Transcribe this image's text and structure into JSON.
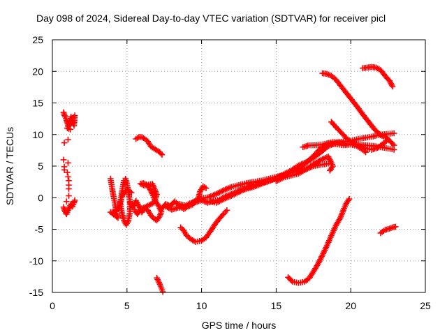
{
  "chart_data": {
    "type": "scatter",
    "title": "Day 098 of 2024, Sidereal Day-to-day VTEC variation (SDTVAR) for receiver picl",
    "xlabel": "GPS time / hours",
    "ylabel": "SDTVAR / TECUs",
    "xlim": [
      0,
      25
    ],
    "ylim": [
      -15,
      25
    ],
    "xticks": [
      "0",
      "5",
      "10",
      "15",
      "20",
      "25"
    ],
    "yticks": [
      "-15",
      "-10",
      "-5",
      "0",
      "5",
      "10",
      "15",
      "20",
      "25"
    ],
    "grid": true,
    "marker": "+",
    "color": "#ff0000",
    "series": [
      {
        "points": [
          [
            0.75,
            13.5
          ],
          [
            0.85,
            12.8
          ],
          [
            0.95,
            12.2
          ],
          [
            1.05,
            11.5
          ],
          [
            1.15,
            12.0
          ],
          [
            1.25,
            12.8
          ],
          [
            1.35,
            12.0
          ],
          [
            1.45,
            11.4
          ],
          [
            1.5,
            13.0
          ],
          [
            1.0,
            11.0
          ],
          [
            1.2,
            10.8
          ]
        ]
      },
      {
        "points": [
          [
            0.75,
            -1.5
          ],
          [
            0.85,
            -2.2
          ],
          [
            0.95,
            -2.6
          ],
          [
            1.05,
            -2.0
          ],
          [
            1.15,
            -1.5
          ],
          [
            1.25,
            -1.0
          ],
          [
            1.35,
            -1.4
          ],
          [
            1.45,
            -0.8
          ],
          [
            1.5,
            -0.4
          ]
        ]
      },
      {
        "points": [
          [
            0.8,
            8.7
          ],
          [
            1.05,
            9.2
          ],
          [
            0.75,
            6.0
          ],
          [
            1.05,
            5.5
          ],
          [
            0.8,
            4.4
          ],
          [
            1.0,
            4.0
          ],
          [
            1.1,
            2.7
          ],
          [
            1.1,
            1.4
          ],
          [
            1.1,
            0.3
          ],
          [
            0.95,
            -0.6
          ],
          [
            0.8,
            4.9
          ],
          [
            1.05,
            3.3
          ],
          [
            1.1,
            2.0
          ]
        ]
      },
      {
        "points": [
          [
            3.9,
            3.0
          ],
          [
            4.0,
            1.5
          ],
          [
            4.1,
            0.2
          ],
          [
            4.2,
            -1.0
          ],
          [
            4.3,
            -2.5
          ],
          [
            4.4,
            -3.2
          ],
          [
            3.9,
            -2.3
          ],
          [
            4.2,
            -2.2
          ],
          [
            4.5,
            -1.5
          ],
          [
            4.6,
            0.0
          ],
          [
            4.7,
            1.5
          ],
          [
            4.8,
            2.7
          ],
          [
            4.9,
            3.0
          ],
          [
            5.0,
            2.2
          ],
          [
            5.1,
            0.8
          ],
          [
            5.2,
            -0.6
          ],
          [
            5.2,
            -2.2
          ],
          [
            5.1,
            -3.6
          ],
          [
            4.95,
            -4.3
          ],
          [
            4.8,
            -3.6
          ],
          [
            4.65,
            -2.3
          ],
          [
            4.55,
            -0.8
          ],
          [
            4.7,
            0.5
          ],
          [
            5.0,
            1.2
          ],
          [
            5.3,
            0.8
          ]
        ]
      },
      {
        "points": [
          [
            5.2,
            -0.8
          ],
          [
            5.4,
            -1.5
          ],
          [
            5.6,
            -0.5
          ],
          [
            5.8,
            -1.3
          ],
          [
            6.0,
            -2.3
          ],
          [
            6.2,
            -1.6
          ],
          [
            6.4,
            -2.0
          ],
          [
            6.6,
            -2.8
          ],
          [
            6.8,
            -3.3
          ],
          [
            7.0,
            -3.6
          ],
          [
            7.2,
            -2.9
          ],
          [
            7.3,
            -2.2
          ],
          [
            7.1,
            -1.2
          ],
          [
            6.9,
            -0.5
          ],
          [
            6.7,
            0.6
          ],
          [
            6.5,
            1.5
          ],
          [
            6.3,
            2.1
          ],
          [
            6.1,
            2.3
          ],
          [
            5.9,
            2.2
          ],
          [
            6.2,
            1.9
          ],
          [
            6.7,
            2.2
          ],
          [
            7.0,
            0.5
          ],
          [
            6.8,
            -0.8
          ],
          [
            6.3,
            -1.4
          ],
          [
            5.9,
            -1.8
          ],
          [
            5.7,
            -2.6
          ],
          [
            5.5,
            -1.9
          ]
        ]
      },
      {
        "points": [
          [
            5.6,
            9.3
          ],
          [
            5.8,
            9.6
          ],
          [
            6.0,
            9.6
          ],
          [
            6.2,
            9.3
          ],
          [
            6.4,
            8.9
          ],
          [
            6.6,
            8.1
          ],
          [
            7.2,
            7.2
          ],
          [
            7.35,
            6.8
          ]
        ]
      },
      {
        "points": [
          [
            7.0,
            -12.7
          ],
          [
            7.1,
            -13.2
          ],
          [
            7.2,
            -13.7
          ],
          [
            7.3,
            -14.3
          ],
          [
            7.4,
            -14.9
          ]
        ]
      },
      {
        "points": [
          [
            7.3,
            -1.8
          ],
          [
            7.6,
            -1.0
          ],
          [
            7.9,
            -1.3
          ],
          [
            8.2,
            -0.6
          ],
          [
            8.5,
            -1.2
          ],
          [
            8.8,
            -1.8
          ],
          [
            9.1,
            -1.4
          ],
          [
            9.4,
            -1.1
          ],
          [
            9.6,
            -0.6
          ],
          [
            9.8,
            0.0
          ],
          [
            9.9,
            1.0
          ],
          [
            10.1,
            1.8
          ],
          [
            10.3,
            1.5
          ]
        ]
      },
      {
        "points": [
          [
            7.6,
            -1.4
          ],
          [
            8.0,
            -1.9
          ],
          [
            8.4,
            -1.6
          ],
          [
            8.8,
            -1.5
          ],
          [
            9.2,
            -0.9
          ],
          [
            9.6,
            -0.7
          ],
          [
            10.0,
            -0.4
          ],
          [
            10.4,
            -0.8
          ],
          [
            10.8,
            -0.5
          ],
          [
            11.2,
            -0.3
          ],
          [
            11.6,
            0.2
          ],
          [
            12.0,
            0.6
          ],
          [
            12.4,
            1.0
          ],
          [
            12.8,
            1.4
          ],
          [
            13.2,
            1.8
          ],
          [
            13.6,
            2.0
          ],
          [
            14.0,
            2.3
          ],
          [
            14.4,
            2.5
          ]
        ]
      },
      {
        "points": [
          [
            8.5,
            -1.0
          ],
          [
            9.0,
            -1.3
          ],
          [
            9.5,
            -0.6
          ],
          [
            10.0,
            -0.1
          ],
          [
            10.5,
            0.1
          ],
          [
            11.0,
            0.6
          ],
          [
            11.5,
            1.2
          ],
          [
            12.0,
            1.7
          ],
          [
            12.5,
            2.0
          ],
          [
            13.0,
            2.3
          ],
          [
            13.5,
            2.5
          ],
          [
            14.0,
            2.7
          ],
          [
            14.5,
            3.0
          ],
          [
            15.0,
            3.3
          ],
          [
            15.5,
            3.6
          ],
          [
            16.0,
            4.0
          ],
          [
            16.5,
            4.2
          ],
          [
            17.0,
            4.5
          ],
          [
            17.5,
            5.0
          ],
          [
            18.0,
            5.2
          ],
          [
            18.5,
            5.4
          ]
        ]
      },
      {
        "points": [
          [
            8.6,
            -4.7
          ],
          [
            8.8,
            -5.2
          ],
          [
            9.0,
            -6.0
          ],
          [
            9.3,
            -6.6
          ],
          [
            9.6,
            -7.0
          ],
          [
            10.0,
            -6.8
          ],
          [
            10.3,
            -6.3
          ],
          [
            10.6,
            -5.3
          ],
          [
            10.9,
            -4.2
          ],
          [
            11.2,
            -3.3
          ],
          [
            11.5,
            -2.5
          ],
          [
            11.7,
            -2.0
          ]
        ]
      },
      {
        "points": [
          [
            10.5,
            -0.6
          ],
          [
            11.0,
            -0.8
          ],
          [
            11.5,
            -0.2
          ],
          [
            12.0,
            0.3
          ],
          [
            12.5,
            0.9
          ],
          [
            13.0,
            1.5
          ],
          [
            13.5,
            1.9
          ],
          [
            14.0,
            2.3
          ],
          [
            14.5,
            2.6
          ],
          [
            15.0,
            3.1
          ],
          [
            15.5,
            3.7
          ],
          [
            16.0,
            4.3
          ],
          [
            16.5,
            5.1
          ],
          [
            17.0,
            5.6
          ],
          [
            17.5,
            6.3
          ],
          [
            18.0,
            7.2
          ],
          [
            18.5,
            8.2
          ],
          [
            19.0,
            8.6
          ],
          [
            19.5,
            8.9
          ],
          [
            20.0,
            9.0
          ],
          [
            20.5,
            9.3
          ],
          [
            21.0,
            9.5
          ],
          [
            21.5,
            9.7
          ],
          [
            22.0,
            10.0
          ],
          [
            22.5,
            10.1
          ],
          [
            22.9,
            10.2
          ]
        ]
      },
      {
        "points": [
          [
            12.5,
            1.0
          ],
          [
            13.0,
            1.4
          ],
          [
            13.5,
            1.7
          ],
          [
            14.0,
            2.2
          ],
          [
            14.5,
            2.7
          ],
          [
            15.0,
            3.0
          ],
          [
            15.5,
            3.5
          ],
          [
            16.0,
            4.1
          ],
          [
            16.5,
            4.6
          ],
          [
            17.0,
            5.5
          ],
          [
            17.5,
            6.6
          ],
          [
            18.0,
            7.9
          ],
          [
            18.5,
            8.6
          ],
          [
            19.0,
            8.5
          ],
          [
            19.5,
            8.3
          ],
          [
            20.0,
            8.4
          ],
          [
            20.5,
            8.4
          ],
          [
            21.0,
            8.3
          ],
          [
            21.5,
            8.2
          ],
          [
            22.0,
            8.0
          ],
          [
            22.5,
            7.8
          ],
          [
            22.9,
            7.6
          ]
        ]
      },
      {
        "points": [
          [
            15.0,
            2.6
          ],
          [
            15.5,
            3.2
          ],
          [
            16.0,
            3.5
          ],
          [
            16.5,
            3.8
          ],
          [
            17.0,
            4.5
          ],
          [
            17.5,
            5.3
          ],
          [
            18.0,
            6.0
          ],
          [
            18.5,
            6.5
          ],
          [
            18.8,
            5.0
          ],
          [
            18.6,
            4.3
          ]
        ]
      },
      {
        "points": [
          [
            16.8,
            8.0
          ],
          [
            17.2,
            8.3
          ],
          [
            17.6,
            8.3
          ],
          [
            18.0,
            8.4
          ],
          [
            18.4,
            8.6
          ],
          [
            18.8,
            8.8
          ],
          [
            19.2,
            8.8
          ],
          [
            19.6,
            8.6
          ],
          [
            20.0,
            8.4
          ],
          [
            20.4,
            8.2
          ],
          [
            20.8,
            7.6
          ],
          [
            21.0,
            7.2
          ]
        ]
      },
      {
        "points": [
          [
            18.1,
            19.7
          ],
          [
            18.4,
            19.6
          ],
          [
            18.7,
            19.3
          ],
          [
            19.0,
            18.7
          ],
          [
            19.3,
            17.8
          ],
          [
            19.6,
            16.9
          ],
          [
            20.0,
            15.7
          ],
          [
            20.4,
            14.5
          ],
          [
            20.8,
            13.2
          ],
          [
            21.2,
            12.0
          ],
          [
            21.6,
            10.8
          ],
          [
            22.0,
            9.9
          ],
          [
            22.4,
            9.5
          ],
          [
            22.9,
            8.3
          ]
        ]
      },
      {
        "points": [
          [
            18.7,
            12.0
          ],
          [
            19.0,
            11.2
          ],
          [
            19.4,
            10.2
          ],
          [
            19.8,
            9.2
          ],
          [
            20.2,
            8.6
          ],
          [
            20.6,
            8.2
          ],
          [
            21.0,
            7.8
          ],
          [
            21.4,
            7.6
          ],
          [
            21.8,
            7.9
          ],
          [
            22.2,
            8.6
          ],
          [
            22.5,
            9.2
          ]
        ]
      },
      {
        "points": [
          [
            20.8,
            20.5
          ],
          [
            21.1,
            20.6
          ],
          [
            21.4,
            20.7
          ],
          [
            21.7,
            20.6
          ],
          [
            22.0,
            20.2
          ],
          [
            22.3,
            19.3
          ],
          [
            22.6,
            18.5
          ],
          [
            22.8,
            17.6
          ]
        ]
      },
      {
        "points": [
          [
            15.8,
            -12.6
          ],
          [
            16.1,
            -13.3
          ],
          [
            16.5,
            -13.5
          ],
          [
            16.9,
            -13.3
          ],
          [
            17.2,
            -12.8
          ],
          [
            17.5,
            -11.7
          ],
          [
            17.8,
            -10.5
          ],
          [
            18.1,
            -9.1
          ],
          [
            18.4,
            -7.6
          ],
          [
            18.7,
            -6.0
          ],
          [
            19.0,
            -4.4
          ],
          [
            19.3,
            -3.2
          ],
          [
            19.5,
            -2.0
          ],
          [
            19.7,
            -0.9
          ],
          [
            19.9,
            -0.2
          ]
        ]
      },
      {
        "points": [
          [
            22.0,
            -5.6
          ],
          [
            22.3,
            -5.1
          ],
          [
            22.6,
            -4.9
          ],
          [
            22.8,
            -4.7
          ],
          [
            23.0,
            -4.6
          ]
        ]
      }
    ]
  }
}
